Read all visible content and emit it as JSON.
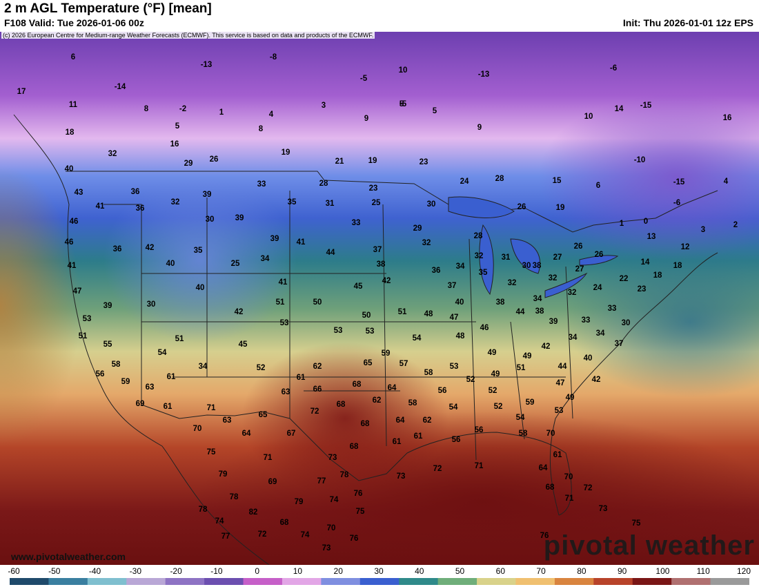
{
  "header": {
    "title": "2 m AGL Temperature (°F) [mean]",
    "valid": "F108 Valid: Tue 2026-01-06 00z",
    "init": "Init: Thu 2026-01-01 12z EPS"
  },
  "copyright": "(c) 2026 European Centre for Medium-range Weather Forecasts (ECMWF). This service is based on data and products of the ECMWF.",
  "footer": {
    "site": "www.pivotalweather.com",
    "brand": "pivotal weather"
  },
  "legend": {
    "unit": "°F",
    "ticks": [
      "-60",
      "-50",
      "-40",
      "-30",
      "-20",
      "-10",
      "0",
      "10",
      "20",
      "30",
      "40",
      "50",
      "60",
      "70",
      "80",
      "90",
      "100",
      "110",
      "120"
    ],
    "colors": [
      "#1f4a6b",
      "#3a7fa0",
      "#7fbfcf",
      "#b9a7d6",
      "#8e73c4",
      "#6c4fb0",
      "#c65fc8",
      "#e2a6e6",
      "#7f8fe0",
      "#3a5fd0",
      "#2f8a8a",
      "#6fae7a",
      "#d9d28a",
      "#f0c070",
      "#d9843f",
      "#b8432a",
      "#7a1616",
      "#b07070",
      "#9a9a9a"
    ]
  },
  "map": {
    "labels": [
      {
        "text": "6"
      },
      {
        "text": "-13"
      },
      {
        "text": "-8"
      },
      {
        "text": "-5"
      },
      {
        "text": "10"
      },
      {
        "text": "-13"
      },
      {
        "text": "-6"
      },
      {
        "text": "17"
      },
      {
        "text": "-14"
      },
      {
        "text": "11"
      },
      {
        "text": "8"
      },
      {
        "text": "-2"
      },
      {
        "text": "1"
      },
      {
        "text": "4"
      },
      {
        "text": "3"
      },
      {
        "text": "5"
      },
      {
        "text": "5"
      },
      {
        "text": "-5"
      },
      {
        "text": "14"
      },
      {
        "text": "-15"
      },
      {
        "text": "10"
      },
      {
        "text": "16"
      },
      {
        "text": "18"
      },
      {
        "text": "5"
      },
      {
        "text": "8"
      },
      {
        "text": "9"
      },
      {
        "text": "9"
      },
      {
        "text": "16"
      },
      {
        "text": "19"
      },
      {
        "text": "32"
      },
      {
        "text": "29"
      },
      {
        "text": "26"
      },
      {
        "text": "21"
      },
      {
        "text": "19"
      },
      {
        "text": "23"
      },
      {
        "text": "-10"
      },
      {
        "text": "40"
      },
      {
        "text": "43"
      },
      {
        "text": "36"
      },
      {
        "text": "39"
      },
      {
        "text": "33"
      },
      {
        "text": "28"
      },
      {
        "text": "23"
      },
      {
        "text": "24"
      },
      {
        "text": "28"
      },
      {
        "text": "15"
      },
      {
        "text": "6"
      },
      {
        "text": "-15"
      },
      {
        "text": "4"
      },
      {
        "text": "41"
      },
      {
        "text": "32"
      },
      {
        "text": "35"
      },
      {
        "text": "31"
      },
      {
        "text": "25"
      },
      {
        "text": "30"
      },
      {
        "text": "26"
      },
      {
        "text": "19"
      },
      {
        "text": "-6"
      },
      {
        "text": "46"
      },
      {
        "text": "36"
      },
      {
        "text": "30"
      },
      {
        "text": "39"
      },
      {
        "text": "33"
      },
      {
        "text": "29"
      },
      {
        "text": "32"
      },
      {
        "text": "1"
      },
      {
        "text": "0"
      },
      {
        "text": "2"
      },
      {
        "text": "46"
      },
      {
        "text": "36"
      },
      {
        "text": "42"
      },
      {
        "text": "35"
      },
      {
        "text": "39"
      },
      {
        "text": "41"
      },
      {
        "text": "28"
      },
      {
        "text": "26"
      },
      {
        "text": "13"
      },
      {
        "text": "3"
      },
      {
        "text": "12"
      },
      {
        "text": "41"
      },
      {
        "text": "40"
      },
      {
        "text": "25"
      },
      {
        "text": "34"
      },
      {
        "text": "44"
      },
      {
        "text": "37"
      },
      {
        "text": "32"
      },
      {
        "text": "31"
      },
      {
        "text": "30"
      },
      {
        "text": "27"
      },
      {
        "text": "26"
      },
      {
        "text": "14"
      },
      {
        "text": "18"
      },
      {
        "text": "38"
      },
      {
        "text": "36"
      },
      {
        "text": "34"
      },
      {
        "text": "35"
      },
      {
        "text": "38"
      },
      {
        "text": "32"
      },
      {
        "text": "27"
      },
      {
        "text": "18"
      },
      {
        "text": "47"
      },
      {
        "text": "40"
      },
      {
        "text": "41"
      },
      {
        "text": "45"
      },
      {
        "text": "42"
      },
      {
        "text": "37"
      },
      {
        "text": "32"
      },
      {
        "text": "34"
      },
      {
        "text": "32"
      },
      {
        "text": "24"
      },
      {
        "text": "22"
      },
      {
        "text": "23"
      },
      {
        "text": "39"
      },
      {
        "text": "30"
      },
      {
        "text": "51"
      },
      {
        "text": "50"
      },
      {
        "text": "40"
      },
      {
        "text": "38"
      },
      {
        "text": "33"
      },
      {
        "text": "42"
      },
      {
        "text": "50"
      },
      {
        "text": "51"
      },
      {
        "text": "48"
      },
      {
        "text": "47"
      },
      {
        "text": "44"
      },
      {
        "text": "39"
      },
      {
        "text": "38"
      },
      {
        "text": "30"
      },
      {
        "text": "33"
      },
      {
        "text": "53"
      },
      {
        "text": "53"
      },
      {
        "text": "53"
      },
      {
        "text": "53"
      },
      {
        "text": "46"
      },
      {
        "text": "34"
      },
      {
        "text": "51"
      },
      {
        "text": "51"
      },
      {
        "text": "45"
      },
      {
        "text": "54"
      },
      {
        "text": "48"
      },
      {
        "text": "34"
      },
      {
        "text": "37"
      },
      {
        "text": "55"
      },
      {
        "text": "54"
      },
      {
        "text": "59"
      },
      {
        "text": "49"
      },
      {
        "text": "49"
      },
      {
        "text": "42"
      },
      {
        "text": "40"
      },
      {
        "text": "58"
      },
      {
        "text": "34"
      },
      {
        "text": "52"
      },
      {
        "text": "62"
      },
      {
        "text": "65"
      },
      {
        "text": "57"
      },
      {
        "text": "53"
      },
      {
        "text": "44"
      },
      {
        "text": "56"
      },
      {
        "text": "61"
      },
      {
        "text": "61"
      },
      {
        "text": "58"
      },
      {
        "text": "52"
      },
      {
        "text": "49"
      },
      {
        "text": "51"
      },
      {
        "text": "47"
      },
      {
        "text": "42"
      },
      {
        "text": "59"
      },
      {
        "text": "63"
      },
      {
        "text": "63"
      },
      {
        "text": "66"
      },
      {
        "text": "68"
      },
      {
        "text": "64"
      },
      {
        "text": "56"
      },
      {
        "text": "52"
      },
      {
        "text": "59"
      },
      {
        "text": "69"
      },
      {
        "text": "61"
      },
      {
        "text": "71"
      },
      {
        "text": "68"
      },
      {
        "text": "62"
      },
      {
        "text": "58"
      },
      {
        "text": "54"
      },
      {
        "text": "52"
      },
      {
        "text": "49"
      },
      {
        "text": "53"
      },
      {
        "text": "63"
      },
      {
        "text": "65"
      },
      {
        "text": "72"
      },
      {
        "text": "68"
      },
      {
        "text": "64"
      },
      {
        "text": "62"
      },
      {
        "text": "54"
      },
      {
        "text": "70"
      },
      {
        "text": "64"
      },
      {
        "text": "67"
      },
      {
        "text": "68"
      },
      {
        "text": "61"
      },
      {
        "text": "61"
      },
      {
        "text": "56"
      },
      {
        "text": "56"
      },
      {
        "text": "58"
      },
      {
        "text": "75"
      },
      {
        "text": "70"
      },
      {
        "text": "61"
      },
      {
        "text": "71"
      },
      {
        "text": "73"
      },
      {
        "text": "72"
      },
      {
        "text": "71"
      },
      {
        "text": "64"
      },
      {
        "text": "70"
      },
      {
        "text": "79"
      },
      {
        "text": "78"
      },
      {
        "text": "73"
      },
      {
        "text": "77"
      },
      {
        "text": "69"
      },
      {
        "text": "68"
      },
      {
        "text": "72"
      },
      {
        "text": "78"
      },
      {
        "text": "76"
      },
      {
        "text": "74"
      },
      {
        "text": "79"
      },
      {
        "text": "71"
      },
      {
        "text": "78"
      },
      {
        "text": "82"
      },
      {
        "text": "75"
      },
      {
        "text": "73"
      },
      {
        "text": "74"
      },
      {
        "text": "68"
      },
      {
        "text": "70"
      },
      {
        "text": "75"
      },
      {
        "text": "77"
      },
      {
        "text": "74"
      },
      {
        "text": "72"
      },
      {
        "text": "76"
      },
      {
        "text": "76"
      },
      {
        "text": "73"
      }
    ]
  }
}
